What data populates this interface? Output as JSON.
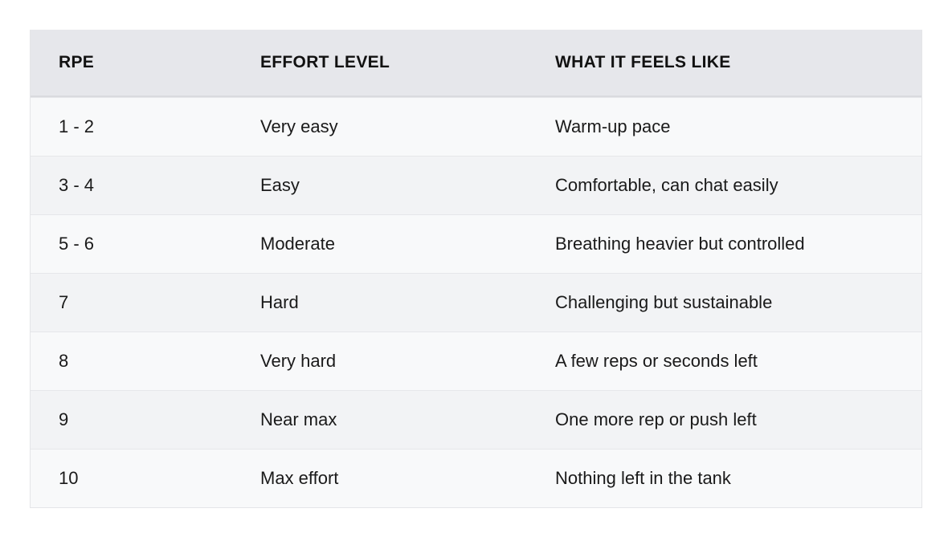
{
  "table": {
    "headers": [
      "RPE",
      "EFFORT LEVEL",
      "WHAT IT FEELS LIKE"
    ],
    "rows": [
      [
        "1 - 2",
        "Very easy",
        "Warm-up pace"
      ],
      [
        "3 - 4",
        "Easy",
        "Comfortable, can chat easily"
      ],
      [
        "5 - 6",
        "Moderate",
        "Breathing heavier but controlled"
      ],
      [
        "7",
        "Hard",
        "Challenging but sustainable"
      ],
      [
        "8",
        "Very hard",
        "A few reps or seconds left"
      ],
      [
        "9",
        "Near max",
        "One more rep or push left"
      ],
      [
        "10",
        "Max effort",
        "Nothing left in the tank"
      ]
    ]
  },
  "colors": {
    "header_bg": "#e6e7eb",
    "row_odd_bg": "#f8f9fa",
    "row_even_bg": "#f2f3f5",
    "text": "#1a1a1a"
  }
}
